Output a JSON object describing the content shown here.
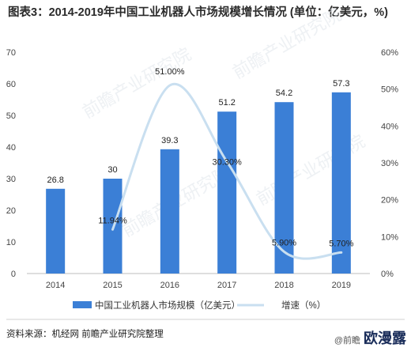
{
  "title": "图表3：2014-2019年中国工业机器人市场规模增长情况 (单位：亿美元，%)",
  "source": "资料来源：机经网 前瞻产业研究院整理",
  "corner_text": "@前瞻",
  "corner_logo": "欧漫露",
  "watermark": "前瞻产业研究院",
  "chart_data": {
    "type": "bar+line",
    "categories": [
      "2014",
      "2015",
      "2016",
      "2017",
      "2018",
      "2019"
    ],
    "series": [
      {
        "name": "中国工业机器人市场规模（亿美元）",
        "type": "bar",
        "axis": "left",
        "values": [
          26.8,
          30,
          39.3,
          51.2,
          54.2,
          57.3
        ],
        "labels": [
          "26.8",
          "30",
          "39.3",
          "51.2",
          "54.2",
          "57.3"
        ],
        "color": "#3b7fd6"
      },
      {
        "name": "增速（%）",
        "type": "line",
        "axis": "right",
        "values": [
          null,
          11.94,
          51.0,
          30.3,
          5.9,
          5.7
        ],
        "labels": [
          "",
          "11.94%",
          "51.00%",
          "30.30%",
          "5.90%",
          "5.70%"
        ],
        "color": "#c9dff0"
      }
    ],
    "left_axis": {
      "ylim": [
        0,
        70
      ],
      "ticks": [
        "0",
        "10",
        "20",
        "30",
        "40",
        "50",
        "60",
        "70"
      ]
    },
    "right_axis": {
      "ylim": [
        0,
        60
      ],
      "ticks": [
        "0%",
        "10%",
        "20%",
        "30%",
        "40%",
        "50%",
        "60%"
      ]
    },
    "legend_position": "bottom",
    "grid": false
  }
}
